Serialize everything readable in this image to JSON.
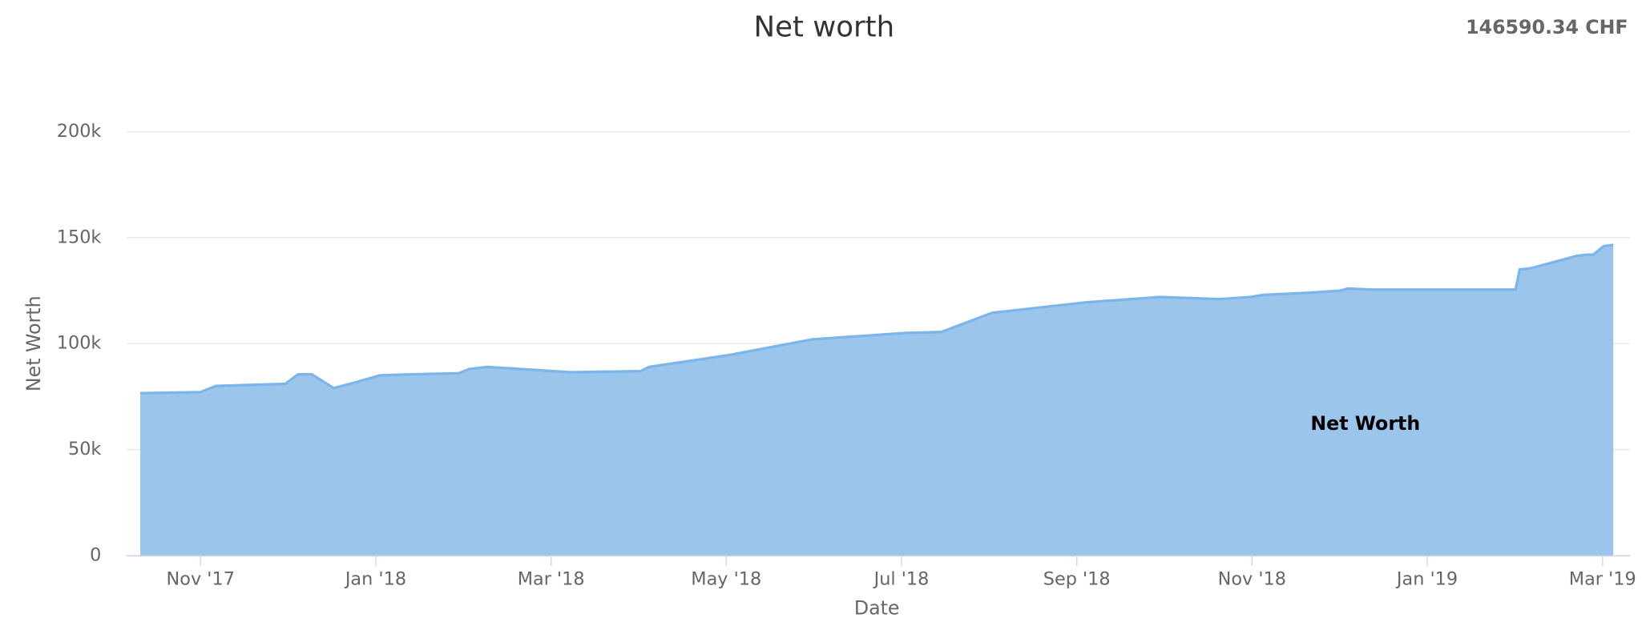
{
  "chart_data": {
    "type": "area",
    "title": "Net worth",
    "total": "146590.34 CHF",
    "x_label": "Date",
    "y_label": "Net Worth",
    "x": [
      2017.776,
      2017.833,
      2017.848,
      2017.914,
      2017.926,
      2017.939,
      2017.96,
      2017.979,
      2018.004,
      2018.034,
      2018.079,
      2018.089,
      2018.106,
      2018.185,
      2018.252,
      2018.26,
      2018.335,
      2018.415,
      2018.503,
      2018.538,
      2018.586,
      2018.676,
      2018.746,
      2018.802,
      2018.832,
      2018.844,
      2018.887,
      2018.917,
      2018.925,
      2018.947,
      2019.084,
      2019.088,
      2019.098,
      2019.143,
      2019.153,
      2019.158,
      2019.168,
      2019.177
    ],
    "series": [
      {
        "name": "Net Worth",
        "color": "#7cb5ec",
        "fill": "#9cc5ec",
        "values": [
          76600,
          77100,
          80000,
          81000,
          85500,
          85500,
          79000,
          81500,
          85000,
          85500,
          86000,
          88000,
          89000,
          86500,
          87000,
          89000,
          94500,
          102000,
          105000,
          105500,
          114500,
          119500,
          122000,
          121000,
          122000,
          123000,
          124000,
          125000,
          126000,
          125500,
          125500,
          135000,
          135500,
          141500,
          142000,
          142000,
          146000,
          146590.34
        ]
      }
    ],
    "xlim": [
      2017.763,
      2019.193
    ],
    "xticks": [
      {
        "value": 2017.8333,
        "label": "Nov '17"
      },
      {
        "value": 2018.0,
        "label": "Jan '18"
      },
      {
        "value": 2018.1667,
        "label": "Mar '18"
      },
      {
        "value": 2018.3333,
        "label": "May '18"
      },
      {
        "value": 2018.5,
        "label": "Jul '18"
      },
      {
        "value": 2018.6667,
        "label": "Sep '18"
      },
      {
        "value": 2018.8333,
        "label": "Nov '18"
      },
      {
        "value": 2019.0,
        "label": "Jan '19"
      },
      {
        "value": 2019.1667,
        "label": "Mar '19"
      }
    ],
    "ylim": [
      0,
      200000
    ],
    "yticks": [
      0,
      {
        "value": 50000,
        "label": "50k"
      },
      {
        "value": 100000,
        "label": "100k"
      },
      {
        "value": 150000,
        "label": "150k"
      },
      {
        "value": 200000,
        "label": "200k"
      }
    ],
    "grid": true
  }
}
